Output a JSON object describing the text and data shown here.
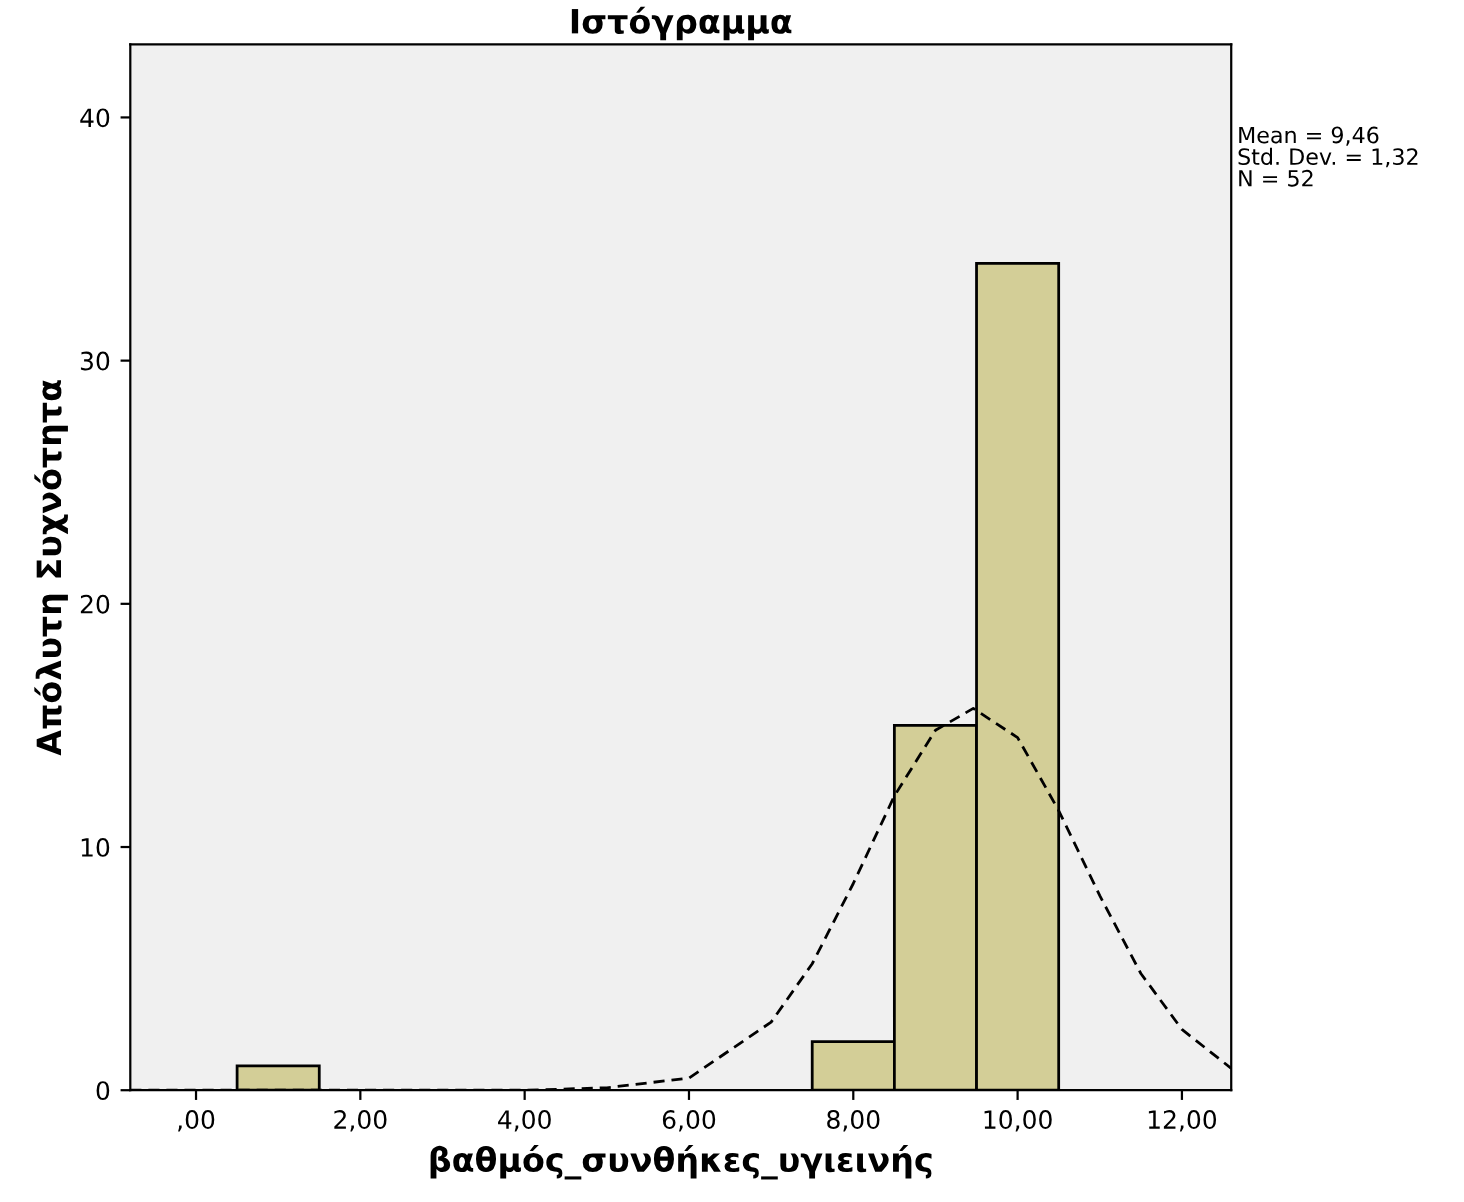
{
  "chart_data": {
    "type": "histogram",
    "title": "Ιστόγραμμα",
    "xlabel": "βαθμός_συνθήκες_υγιεινής",
    "ylabel": "Απόλυτη Συχνότητα",
    "bins": [
      0.5,
      1.5,
      2.5,
      3.5,
      4.5,
      5.5,
      6.5,
      7.5,
      8.5,
      9.5,
      10.5
    ],
    "values": [
      1,
      0,
      0,
      0,
      0,
      0,
      0,
      2,
      15,
      34
    ],
    "color": "#d3ce97",
    "series": [
      {
        "type": "line",
        "line_style": "dashed",
        "color": "#000000",
        "x": [
          -0.8,
          3,
          4,
          5,
          6,
          7,
          7.5,
          8,
          8.5,
          9,
          9.46,
          10,
          10.5,
          11,
          11.5,
          12,
          12.6
        ],
        "values": [
          0,
          0,
          0,
          0.1,
          0.5,
          2.8,
          5.2,
          8.5,
          12.1,
          14.8,
          15.7,
          14.5,
          11.5,
          8.0,
          4.8,
          2.5,
          0.9
        ]
      }
    ],
    "xlim": [
      -0.8,
      12.6
    ],
    "xticks": [
      {
        "value": 0,
        "label": ",00"
      },
      {
        "value": 2,
        "label": "2,00"
      },
      {
        "value": 4,
        "label": "4,00"
      },
      {
        "value": 6,
        "label": "6,00"
      },
      {
        "value": 8,
        "label": "8,00"
      },
      {
        "value": 10,
        "label": "10,00"
      },
      {
        "value": 12,
        "label": "12,00"
      }
    ],
    "ylim": [
      0,
      43
    ],
    "yticks": [
      0,
      10,
      20,
      30,
      40
    ],
    "annotations": [
      "Mean = 9,46",
      "Std. Dev. = 1,32",
      "N = 52"
    ]
  }
}
